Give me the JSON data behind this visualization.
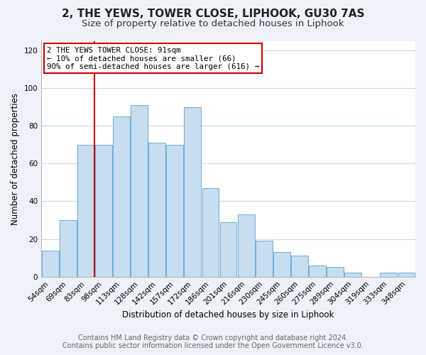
{
  "title": "2, THE YEWS, TOWER CLOSE, LIPHOOK, GU30 7AS",
  "subtitle": "Size of property relative to detached houses in Liphook",
  "xlabel": "Distribution of detached houses by size in Liphook",
  "ylabel": "Number of detached properties",
  "categories": [
    "54sqm",
    "69sqm",
    "83sqm",
    "98sqm",
    "113sqm",
    "128sqm",
    "142sqm",
    "157sqm",
    "172sqm",
    "186sqm",
    "201sqm",
    "216sqm",
    "230sqm",
    "245sqm",
    "260sqm",
    "275sqm",
    "289sqm",
    "304sqm",
    "319sqm",
    "333sqm",
    "348sqm"
  ],
  "values": [
    14,
    30,
    70,
    70,
    85,
    91,
    71,
    70,
    90,
    47,
    29,
    33,
    19,
    13,
    11,
    6,
    5,
    2,
    0,
    2,
    2
  ],
  "bar_color": "#c8ddf0",
  "bar_edge_color": "#6aaed6",
  "vline_x_index": 3,
  "vline_color": "#cc0000",
  "annotation_title": "2 THE YEWS TOWER CLOSE: 91sqm",
  "annotation_line1": "← 10% of detached houses are smaller (66)",
  "annotation_line2": "90% of semi-detached houses are larger (616) →",
  "annotation_box_color": "#ffffff",
  "annotation_box_edge_color": "#cc0000",
  "ylim": [
    0,
    125
  ],
  "yticks": [
    0,
    20,
    40,
    60,
    80,
    100,
    120
  ],
  "footer1": "Contains HM Land Registry data © Crown copyright and database right 2024.",
  "footer2": "Contains public sector information licensed under the Open Government Licence v3.0.",
  "background_color": "#eef2f8",
  "plot_background_color": "#ffffff",
  "grid_color": "#c8d8ec",
  "title_fontsize": 11,
  "subtitle_fontsize": 9.5,
  "axis_label_fontsize": 8.5,
  "tick_fontsize": 7.5,
  "annotation_fontsize": 7.8,
  "footer_fontsize": 7
}
